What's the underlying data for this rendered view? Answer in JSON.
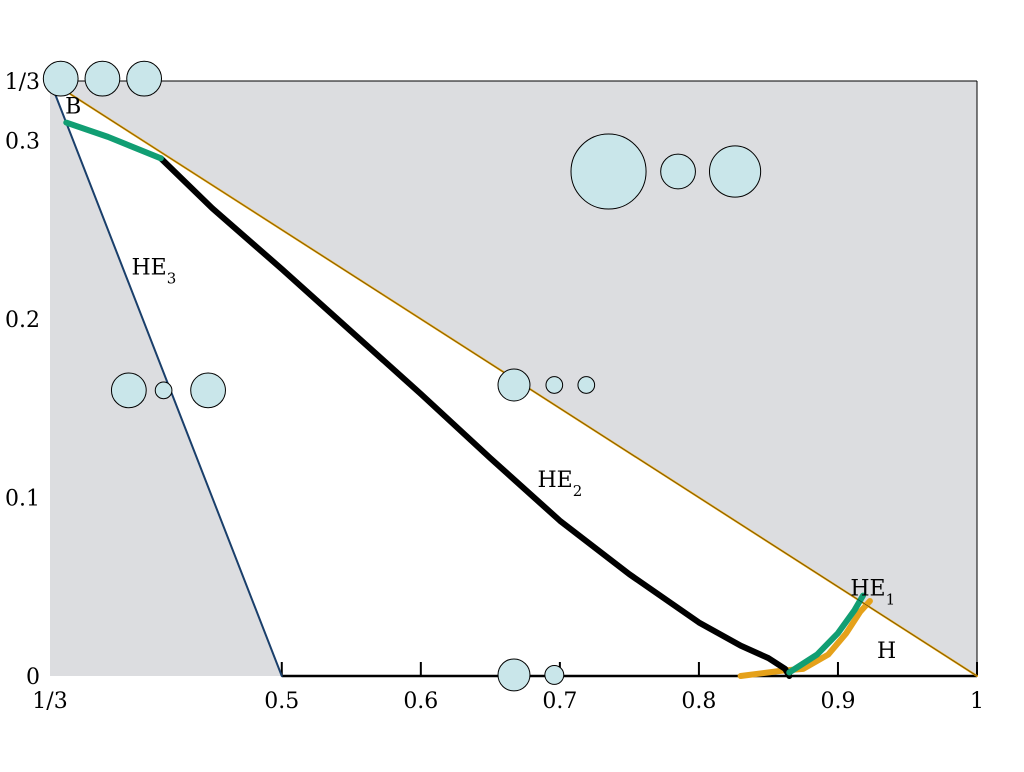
{
  "chart_data": {
    "type": "line",
    "title": "",
    "xlabel": "",
    "ylabel": "",
    "xlim": [
      0.3333,
      1.0
    ],
    "ylim": [
      0,
      0.3333
    ],
    "grid": false,
    "colors": {
      "shaded": "#dcdde0",
      "boundary": "#e3a008",
      "he3_line": "#1a3f6b",
      "green": "#119e73",
      "orange": "#e5a11a",
      "black": "#000000",
      "sphere_fill": "#c9e6ea"
    },
    "x_ticks": [
      {
        "value": 0.3333,
        "label": "1/3"
      },
      {
        "value": 0.5,
        "label": "0.5"
      },
      {
        "value": 0.6,
        "label": "0.6"
      },
      {
        "value": 0.7,
        "label": "0.7"
      },
      {
        "value": 0.8,
        "label": "0.8"
      },
      {
        "value": 0.9,
        "label": "0.9"
      },
      {
        "value": 1.0,
        "label": "1"
      }
    ],
    "y_ticks": [
      {
        "value": 0,
        "label": "0"
      },
      {
        "value": 0.1,
        "label": "0.1"
      },
      {
        "value": 0.2,
        "label": "0.2"
      },
      {
        "value": 0.3,
        "label": "0.3"
      },
      {
        "value": 0.3333,
        "label": "1/3"
      }
    ],
    "region_labels": [
      {
        "name": "B",
        "text": "B",
        "x": 0.35,
        "y": 0.315
      },
      {
        "name": "HE3",
        "text": "HE",
        "sub": "3",
        "x": 0.408,
        "y": 0.225
      },
      {
        "name": "HE2",
        "text": "HE",
        "sub": "2",
        "x": 0.7,
        "y": 0.106
      },
      {
        "name": "HE1",
        "text": "HE",
        "sub": "1",
        "x": 0.925,
        "y": 0.045
      },
      {
        "name": "H",
        "text": "H",
        "x": 0.935,
        "y": 0.01
      }
    ],
    "series": [
      {
        "key": "upper_boundary",
        "points": [
          [
            0.3333,
            0.3333
          ],
          [
            1.0,
            0.0
          ]
        ]
      },
      {
        "key": "he3_boundary",
        "points": [
          [
            0.3333,
            0.3333
          ],
          [
            0.5,
            0.0
          ]
        ]
      },
      {
        "key": "bifurcation_green",
        "points": [
          [
            0.345,
            0.31
          ],
          [
            0.375,
            0.302
          ],
          [
            0.413,
            0.29
          ]
        ]
      },
      {
        "key": "he2_curve",
        "points": [
          [
            0.413,
            0.29
          ],
          [
            0.45,
            0.262
          ],
          [
            0.5,
            0.228
          ],
          [
            0.55,
            0.193
          ],
          [
            0.6,
            0.158
          ],
          [
            0.65,
            0.122
          ],
          [
            0.7,
            0.087
          ],
          [
            0.75,
            0.057
          ],
          [
            0.8,
            0.03
          ],
          [
            0.83,
            0.017
          ],
          [
            0.85,
            0.01
          ],
          [
            0.862,
            0.004
          ],
          [
            0.865,
            0.0
          ]
        ]
      },
      {
        "key": "he1_green",
        "points": [
          [
            0.865,
            0.002
          ],
          [
            0.885,
            0.012
          ],
          [
            0.9,
            0.024
          ],
          [
            0.912,
            0.037
          ],
          [
            0.918,
            0.045
          ]
        ]
      },
      {
        "key": "h_orange",
        "points": [
          [
            0.83,
            0.0
          ],
          [
            0.86,
            0.003
          ],
          [
            0.875,
            0.004
          ],
          [
            0.893,
            0.012
          ],
          [
            0.906,
            0.024
          ],
          [
            0.916,
            0.036
          ],
          [
            0.923,
            0.042
          ]
        ]
      }
    ],
    "sphere_glyphs": [
      {
        "name": "glyph-top-left",
        "spheres": [
          [
            0.341,
            0.3346,
            0.0125
          ],
          [
            0.371,
            0.3346,
            0.0125
          ],
          [
            0.401,
            0.3346,
            0.0125
          ]
        ]
      },
      {
        "name": "glyph-top-right",
        "spheres": [
          [
            0.735,
            0.2826,
            0.027
          ],
          [
            0.785,
            0.2826,
            0.0125
          ],
          [
            0.826,
            0.2826,
            0.0184
          ]
        ]
      },
      {
        "name": "glyph-middle",
        "spheres": [
          [
            0.667,
            0.163,
            0.0115
          ],
          [
            0.696,
            0.163,
            0.006
          ],
          [
            0.719,
            0.163,
            0.006
          ]
        ]
      },
      {
        "name": "glyph-left",
        "spheres": [
          [
            0.39,
            0.16,
            0.0125
          ],
          [
            0.415,
            0.16,
            0.006
          ],
          [
            0.447,
            0.16,
            0.0125
          ]
        ]
      },
      {
        "name": "glyph-bottom",
        "spheres": [
          [
            0.667,
            0.0006,
            0.0115
          ],
          [
            0.696,
            0.0006,
            0.0068
          ]
        ]
      }
    ]
  }
}
